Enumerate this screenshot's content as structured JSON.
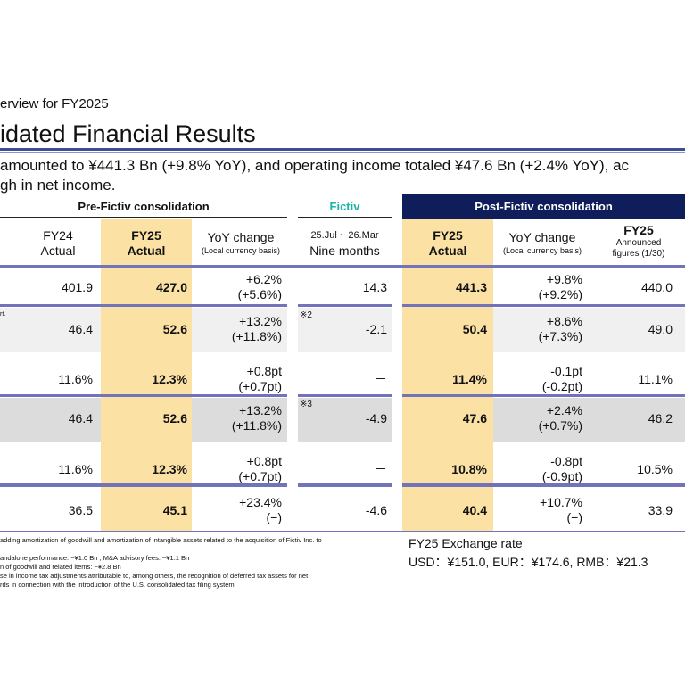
{
  "header": {
    "subtitle": "erview for FY2025",
    "title": "idated Financial Results",
    "lead_line1": "amounted to ¥441.3 Bn (+9.8% YoY), and operating income totaled ¥47.6 Bn (+2.4% YoY), ac",
    "lead_line2": "gh in net income."
  },
  "table": {
    "groups": {
      "pre": "Pre-Fictiv consolidation",
      "fictiv": "Fictiv",
      "post": "Post-Fictiv consolidation"
    },
    "columns": {
      "fy24": [
        "FY24",
        "Actual"
      ],
      "fy25": [
        "FY25",
        "Actual"
      ],
      "yoy": [
        "YoY change",
        "(Local currency basis)"
      ],
      "fictiv": [
        "25.Jul ~ 26.Mar",
        "Nine months"
      ],
      "post_fy25": [
        "FY25",
        "Actual"
      ],
      "post_yoy": [
        "YoY change",
        "(Local currency basis)"
      ],
      "announced": [
        "FY25",
        "Announced",
        "figures (1/30)"
      ]
    },
    "row_fragment": "rt.",
    "rows": [
      {
        "fy24": "401.9",
        "fy25": "427.0",
        "yoy1": "+6.2%",
        "yoy2": "(+5.6%)",
        "fictiv": "14.3",
        "note": "",
        "post": "441.3",
        "pyoy1": "+9.8%",
        "pyoy2": "(+9.2%)",
        "ann": "440.0"
      },
      {
        "fy24": "46.4",
        "fy25": "52.6",
        "yoy1": "+13.2%",
        "yoy2": "(+11.8%)",
        "fictiv": "-2.1",
        "note": "※2",
        "post": "50.4",
        "pyoy1": "+8.6%",
        "pyoy2": "(+7.3%)",
        "ann": "49.0"
      },
      {
        "fy24": "11.6%",
        "fy25": "12.3%",
        "yoy1": "+0.8pt",
        "yoy2": "(+0.7pt)",
        "fictiv": "－",
        "note": "",
        "post": "11.4%",
        "pyoy1": "-0.1pt",
        "pyoy2": "(-0.2pt)",
        "ann": "11.1%"
      },
      {
        "fy24": "46.4",
        "fy25": "52.6",
        "yoy1": "+13.2%",
        "yoy2": "(+11.8%)",
        "fictiv": "-4.9",
        "note": "※3",
        "post": "47.6",
        "pyoy1": "+2.4%",
        "pyoy2": "(+0.7%)",
        "ann": "46.2"
      },
      {
        "fy24": "11.6%",
        "fy25": "12.3%",
        "yoy1": "+0.8pt",
        "yoy2": "(+0.7pt)",
        "fictiv": "－",
        "note": "",
        "post": "10.8%",
        "pyoy1": "-0.8pt",
        "pyoy2": "(-0.9pt)",
        "ann": "10.5%"
      },
      {
        "fy24": "36.5",
        "fy25": "45.1",
        "yoy1": "+23.4%",
        "yoy2": "(−)",
        "fictiv": "-4.6",
        "note": "",
        "post": "40.4",
        "pyoy1": "+10.7%",
        "pyoy2": "(−)",
        "ann": "33.9"
      }
    ]
  },
  "footnotes": [
    "adding amortization of goodwill and amortization of intangible assets related to the acquisition of Fictiv Inc. to",
    "andalone performance: ~¥1.0 Bn ; M&A advisory fees: ~¥1.1 Bn",
    "n of goodwill and related items: ~¥2.8 Bn",
    "se in income tax adjustments attributable to, among others, the recognition of deferred tax assets for net",
    "rds in connection with the introduction of the U.S. consolidated tax filing system"
  ],
  "exchange": {
    "title": "FY25 Exchange rate",
    "rates": "USD：¥151.0, EUR：¥174.6, RMB：¥21.3"
  },
  "colors": {
    "accent_navy": "#0f1e5a",
    "band": "#7273b8",
    "fy25_highlight": "#fbe2a4",
    "fictiv_teal": "#1ab3a7"
  }
}
